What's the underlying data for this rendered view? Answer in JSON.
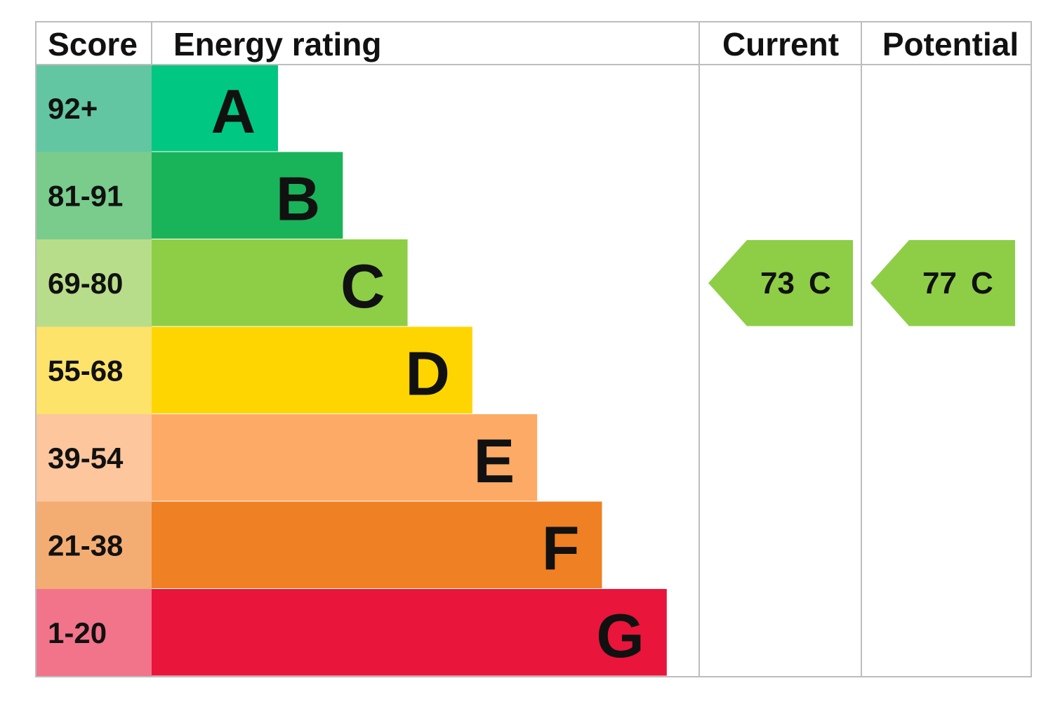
{
  "header": {
    "score": "Score",
    "rating": "Energy rating",
    "current": "Current",
    "potential": "Potential"
  },
  "bands": [
    {
      "score": "92+",
      "letter": "A"
    },
    {
      "score": "81-91",
      "letter": "B"
    },
    {
      "score": "69-80",
      "letter": "C"
    },
    {
      "score": "55-68",
      "letter": "D"
    },
    {
      "score": "39-54",
      "letter": "E"
    },
    {
      "score": "21-38",
      "letter": "F"
    },
    {
      "score": "1-20",
      "letter": "G"
    }
  ],
  "current": {
    "value": 73,
    "letter": "C"
  },
  "potential": {
    "value": 77,
    "letter": "C"
  }
}
